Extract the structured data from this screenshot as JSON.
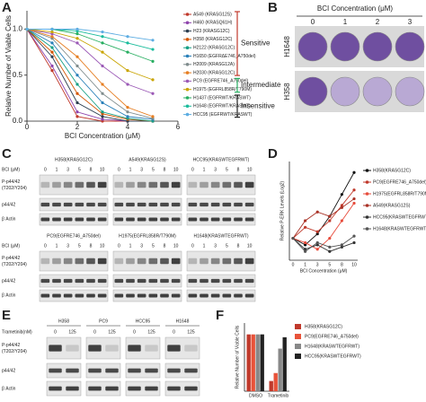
{
  "panel_labels": [
    "A",
    "B",
    "C",
    "D",
    "E",
    "F"
  ],
  "chart_data": [
    {
      "type": "line",
      "xlabel": "BCI Concentration (μM)",
      "ylabel": "Relative Number of Viable Cells",
      "x": [
        0,
        1,
        2,
        3,
        4,
        5
      ],
      "xlim": [
        0,
        6
      ],
      "xticks": [
        0,
        2,
        4,
        6
      ],
      "ylim": [
        0,
        1.2
      ],
      "yticks": [
        {
          "value": 0,
          "label": "0.0"
        },
        {
          "value": 0.5,
          "label": "0.5"
        },
        {
          "value": 1,
          "label": "1.0"
        }
      ],
      "annotations": [
        "Sensitive",
        "Intermediate",
        "Insensitive"
      ],
      "series": [
        {
          "name": "A549 (KRASG12S)",
          "color": "#c0392b",
          "values": [
            1,
            0.55,
            0.05,
            0,
            0,
            0
          ]
        },
        {
          "name": "H460 (KRASQ61H)",
          "color": "#8e44ad",
          "values": [
            1,
            0.6,
            0.1,
            0.02,
            0,
            0
          ]
        },
        {
          "name": "H23 (KRASG12C)",
          "color": "#2c3e50",
          "values": [
            1,
            0.7,
            0.2,
            0.05,
            0,
            0
          ]
        },
        {
          "name": "H358 (KRASG12C)",
          "color": "#d35400",
          "values": [
            1,
            0.75,
            0.3,
            0.08,
            0.02,
            0
          ]
        },
        {
          "name": "H2122 (KRASG12C)",
          "color": "#16a085",
          "values": [
            1,
            0.8,
            0.4,
            0.1,
            0.03,
            0
          ]
        },
        {
          "name": "H1650 (EGFRΔE746_A750del)",
          "color": "#2980b9",
          "values": [
            1,
            0.85,
            0.5,
            0.2,
            0.05,
            0.02
          ]
        },
        {
          "name": "H2009 (KRASG12A)",
          "color": "#7f8c8d",
          "values": [
            1,
            0.9,
            0.6,
            0.3,
            0.1,
            0.03
          ]
        },
        {
          "name": "H2030 (KRASG12C)",
          "color": "#e67e22",
          "values": [
            1,
            0.92,
            0.7,
            0.4,
            0.15,
            0.05
          ]
        },
        {
          "name": "PC9 (EGFRE746_A750del)",
          "color": "#9b59b6",
          "values": [
            1,
            0.95,
            0.85,
            0.6,
            0.4,
            0.3
          ]
        },
        {
          "name": "H1975 (EGFRL858R/T790M)",
          "color": "#c9a400",
          "values": [
            1,
            0.97,
            0.9,
            0.75,
            0.55,
            0.45
          ]
        },
        {
          "name": "H1437 (EGFRWT/KRASWT)",
          "color": "#27ae60",
          "values": [
            1,
            1,
            0.95,
            0.85,
            0.75,
            0.65
          ]
        },
        {
          "name": "H1648 (EGFRWT/KRASWT)",
          "color": "#1abc9c",
          "values": [
            1,
            1,
            0.98,
            0.92,
            0.85,
            0.78
          ]
        },
        {
          "name": "HCC95 (EGFRWT/KRASWT)",
          "color": "#5dade2",
          "values": [
            1,
            1,
            1,
            0.97,
            0.92,
            0.88
          ]
        }
      ]
    },
    {
      "type": "line",
      "xlabel": "BCI Concentration (μM)",
      "ylabel": "Relative P-ERK Levels (Log2)",
      "categories": [
        "0",
        "1",
        "3",
        "5",
        "8",
        "10"
      ],
      "ylim": [
        -1,
        3.5
      ],
      "series": [
        {
          "name": "H358(KRASG12C)",
          "color": "#111111",
          "values": [
            0,
            -0.3,
            0.2,
            1,
            2,
            3
          ]
        },
        {
          "name": "PC9(EGFRE746_A750del)",
          "color": "#c0392b",
          "values": [
            0,
            0.5,
            0.3,
            0.8,
            1.5,
            2.2
          ]
        },
        {
          "name": "H1975(EGFRL858R/T790M)",
          "color": "#e74c3c",
          "values": [
            0,
            -0.2,
            -0.5,
            0,
            0.8,
            1.6
          ]
        },
        {
          "name": "A549(KRASG12S)",
          "color": "#a93226",
          "values": [
            0,
            0.8,
            1.2,
            1,
            1.4,
            1.8
          ]
        },
        {
          "name": "HCC95(KRASWTEGFRWT)",
          "color": "#333333",
          "values": [
            0,
            -0.5,
            -0.3,
            -0.6,
            -0.4,
            -0.2
          ]
        },
        {
          "name": "H1648(KRASWTEGFRWT)",
          "color": "#555555",
          "values": [
            0,
            -0.6,
            -0.2,
            -0.4,
            -0.3,
            0.1
          ]
        }
      ]
    },
    {
      "type": "bar",
      "ylabel": "Relative Number of Viable Cells",
      "categories": [
        "DMSO",
        "Trametinib"
      ],
      "ylim": [
        0,
        1.2
      ],
      "series": [
        {
          "name": "H358(KRASG12C)",
          "color": "#c0392b",
          "values": [
            1,
            0.18
          ]
        },
        {
          "name": "PC9(EGFRE746_A750del)",
          "color": "#e8533a",
          "values": [
            1,
            0.32
          ]
        },
        {
          "name": "H1648(KRASWTEGFRWT)",
          "color": "#888888",
          "values": [
            1,
            0.75
          ]
        },
        {
          "name": "HCC95(KRASWTEGFRWT)",
          "color": "#222222",
          "values": [
            1,
            0.95
          ]
        }
      ]
    }
  ],
  "panel_b": {
    "title": "BCI Concentration (μM)",
    "columns": [
      "0",
      "1",
      "2",
      "3"
    ],
    "rows": [
      "H1648",
      "H358"
    ]
  },
  "panel_c": {
    "bci_label": "BCI (μM)",
    "concentrations": [
      "0",
      "1",
      "3",
      "5",
      "8",
      "10"
    ],
    "rows": [
      [
        "P-p44/42",
        "(T202/Y204)"
      ],
      [
        "p44/42"
      ],
      [
        "β Actin"
      ]
    ],
    "blocks": [
      [
        "H358(KRASG12C)",
        "A549(KRASG12S)",
        "HCC95(KRASWTEGFRWT)"
      ],
      [
        "PC9(EGFRE746_A750del)",
        "H1975(EGFRL858R/T790M)",
        "H1648(KRASWTEGFRWT)"
      ]
    ]
  },
  "panel_e": {
    "treatment_label": "Trametinib(nM)",
    "doses": [
      "0",
      "125"
    ],
    "cell_lines": [
      "H358",
      "PC9",
      "HCC95",
      "H1648"
    ],
    "rows": [
      [
        "P-p44/42",
        "(T202/Y204)"
      ],
      [
        "p44/42"
      ],
      [
        "β Actin"
      ]
    ]
  }
}
